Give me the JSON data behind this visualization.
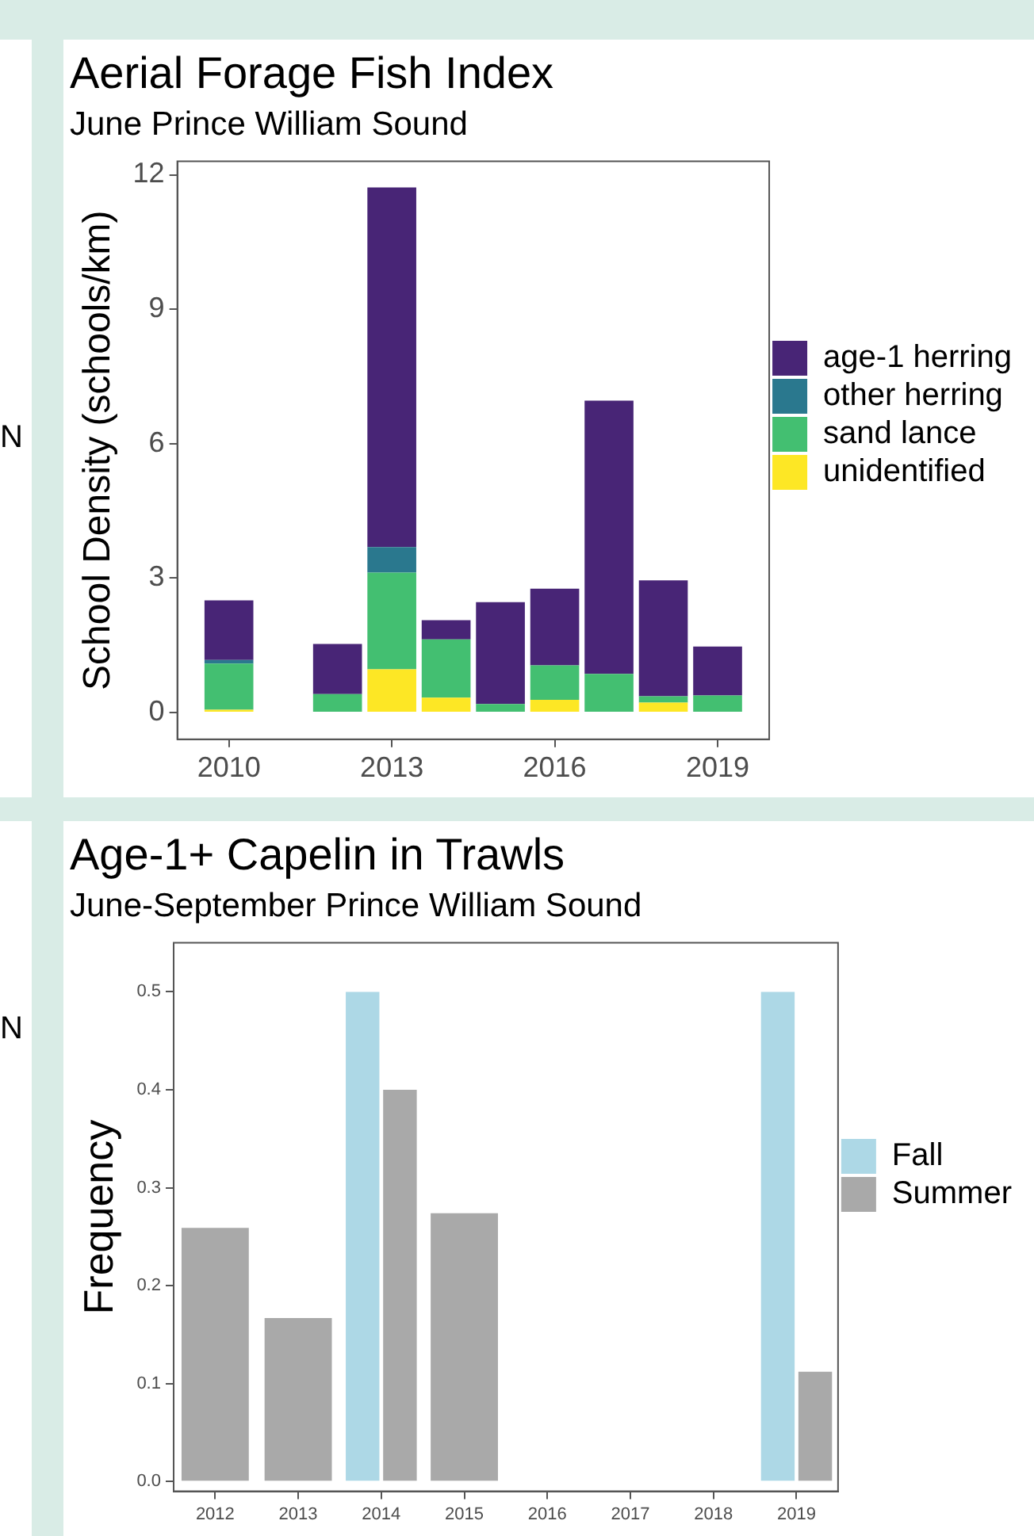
{
  "chart_data": [
    {
      "type": "bar",
      "title": "Aerial Forage Fish Index",
      "subtitle": "June Prince William Sound",
      "ylabel": "School Density (schools/km)",
      "annotations": [
        "N"
      ],
      "x": [
        2010,
        2012,
        2013,
        2014,
        2015,
        2016,
        2017,
        2018,
        2019
      ],
      "stacked": true,
      "series": [
        {
          "name": "unidentified",
          "color": "#fde725",
          "values": [
            0.06,
            0,
            0.96,
            0.33,
            0,
            0.28,
            0,
            0.22,
            0
          ]
        },
        {
          "name": "sand lance",
          "color": "#43bf71",
          "values": [
            1.03,
            0.41,
            2.16,
            1.3,
            0.19,
            0.77,
            0.86,
            0.14,
            0.38
          ]
        },
        {
          "name": "other herring",
          "color": "#2a788e",
          "values": [
            0.08,
            0,
            0.57,
            0,
            0,
            0,
            0,
            0,
            0
          ]
        },
        {
          "name": "age-1 herring",
          "color": "#482576",
          "values": [
            1.33,
            1.12,
            8.03,
            0.43,
            2.27,
            1.71,
            6.1,
            2.59,
            1.09
          ]
        }
      ],
      "xlim": [
        2009.05,
        2019.95
      ],
      "xticks": [
        2010,
        2013,
        2016,
        2019
      ],
      "ylim": [
        -0.6,
        12.3
      ],
      "yticks": [
        0,
        3,
        6,
        9,
        12
      ],
      "grid": false,
      "legend": "right"
    },
    {
      "type": "bar",
      "title": "Age-1+ Capelin in Trawls",
      "subtitle": "June-September Prince William Sound",
      "ylabel": "Frequency",
      "annotations": [
        "N"
      ],
      "categories": [
        "2012",
        "2013",
        "2014",
        "2015",
        "2016",
        "2017",
        "2018",
        "2019"
      ],
      "series": [
        {
          "name": "Fall",
          "color": "#add8e6",
          "values": [
            null,
            null,
            0.5,
            null,
            null,
            0,
            0,
            0.5
          ]
        },
        {
          "name": "Summer",
          "color": "#a9a9a9",
          "values": [
            0.259,
            0.167,
            0.4,
            0.274,
            0,
            null,
            null,
            0.112
          ]
        }
      ],
      "ylim": [
        -0.01,
        0.55
      ],
      "yticks": [
        {
          "value": 0,
          "label": "0.0"
        },
        0.1,
        0.2,
        0.3,
        0.4,
        0.5
      ],
      "grid": false,
      "legend": "right"
    }
  ]
}
